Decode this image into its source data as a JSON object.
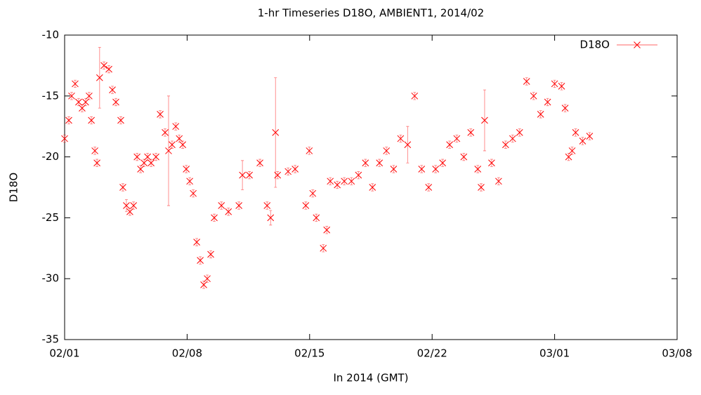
{
  "chart_data": {
    "type": "scatter",
    "title": "1-hr Timeseries D18O, AMBIENT1, 2014/02",
    "xlabel": "In 2014 (GMT)",
    "ylabel": "D18O",
    "legend": "top-right",
    "series": [
      {
        "name": "D18O",
        "color": "#ff0000",
        "x": [
          0,
          0.24,
          0.4,
          0.6,
          0.8,
          1.0,
          1.2,
          1.4,
          1.53,
          1.73,
          1.85,
          2.0,
          2.25,
          2.53,
          2.73,
          2.93,
          3.21,
          3.33,
          3.53,
          3.73,
          3.94,
          4.14,
          4.34,
          4.54,
          4.74,
          4.94,
          5.22,
          5.46,
          5.74,
          5.94,
          6.14,
          6.35,
          6.55,
          6.75,
          6.95,
          7.15,
          7.35,
          7.55,
          7.75,
          7.95,
          8.15,
          8.35,
          8.55,
          8.96,
          9.36,
          9.96,
          10.16,
          10.56,
          11.16,
          11.57,
          11.77,
          12.05,
          12.17,
          12.77,
          13.17,
          13.78,
          13.98,
          14.18,
          14.38,
          14.78,
          14.98,
          15.18,
          15.58,
          15.98,
          16.39,
          16.79,
          17.19,
          17.59,
          17.99,
          18.39,
          18.8,
          19.2,
          19.6,
          20.0,
          20.4,
          20.8,
          21.2,
          21.6,
          22.0,
          22.41,
          22.81,
          23.21,
          23.61,
          23.8,
          24.0,
          24.4,
          24.8,
          25.2,
          25.6,
          26.0,
          26.4,
          26.8,
          27.2,
          27.6,
          28.0,
          28.4,
          28.6,
          28.8,
          29.0,
          29.2,
          29.6,
          30.0
        ],
        "values": [
          -18.5,
          -17,
          -15,
          -14,
          -15.5,
          -16,
          -15.5,
          -15,
          -17,
          -19.5,
          -20.5,
          -13.5,
          -12.5,
          -12.8,
          -14.5,
          -15.5,
          -17,
          -22.5,
          -24,
          -24.5,
          -24,
          -20,
          -21,
          -20.5,
          -20,
          -20.5,
          -20,
          -16.5,
          -18,
          -19.5,
          -19,
          -17.5,
          -18.5,
          -19,
          -21,
          -22,
          -23,
          -27,
          -28.5,
          -30.5,
          -30,
          -28,
          -25,
          -24,
          -24.5,
          -24,
          -21.5,
          -21.5,
          -20.5,
          -24,
          -25,
          -18,
          -21.5,
          -21.2,
          -21,
          -24,
          -19.5,
          -23,
          -25,
          -27.5,
          -26,
          -22,
          -22.3,
          -22,
          -22,
          -21.5,
          -20.5,
          -22.5,
          -20.5,
          -19.5,
          -21,
          -18.5,
          -19,
          -15,
          -21,
          -22.5,
          -21,
          -20.5,
          -19,
          -18.5,
          -20,
          -18,
          -21,
          -22.5,
          -17,
          -20.5,
          -22,
          -19,
          -18.5,
          -18,
          -13.8,
          -15,
          -16.5,
          -15.5,
          -14,
          -14.2,
          -16,
          -20,
          -19.5,
          -18,
          -18.7,
          -18.3
        ],
        "errors": [
          0.3,
          0.3,
          0.3,
          0.3,
          0.3,
          0.3,
          0.3,
          0.3,
          0.3,
          0.3,
          0.3,
          2.5,
          0.3,
          0.3,
          0.3,
          0.3,
          0.3,
          0.3,
          0.5,
          0.3,
          0.3,
          0.3,
          0.3,
          0.3,
          0.3,
          0.3,
          0.3,
          0.3,
          0.3,
          4.5,
          0.3,
          0.3,
          0.3,
          0.3,
          0.3,
          0.3,
          0.3,
          0.3,
          0.3,
          0.3,
          0.3,
          0.3,
          0.3,
          0.3,
          0.3,
          0.3,
          1.2,
          0.3,
          0.3,
          0.3,
          0.6,
          4.5,
          0.3,
          0.3,
          0.3,
          0.3,
          0.3,
          0.3,
          0.3,
          0.3,
          0.3,
          0.3,
          0.3,
          0.3,
          0.3,
          0.3,
          0.3,
          0.3,
          0.3,
          0.3,
          0.3,
          0.3,
          1.5,
          0.3,
          0.3,
          0.3,
          0.3,
          0.3,
          0.3,
          0.3,
          0.3,
          0.3,
          0.3,
          0.3,
          2.5,
          0.3,
          0.3,
          0.3,
          0.3,
          0.3,
          0.3,
          0.3,
          0.3,
          0.3,
          0.3,
          0.3,
          0.3,
          0.3,
          0.3,
          0.3,
          0.3,
          0.3
        ]
      }
    ],
    "xlim": [
      0,
      35
    ],
    "xticks": [
      {
        "value": 0,
        "label": "02/01"
      },
      {
        "value": 7,
        "label": "02/08"
      },
      {
        "value": 14,
        "label": "02/15"
      },
      {
        "value": 21,
        "label": "02/22"
      },
      {
        "value": 28,
        "label": "03/01"
      },
      {
        "value": 35,
        "label": "03/08"
      }
    ],
    "ylim": [
      -35,
      -10
    ],
    "yticks": [
      -35,
      -30,
      -25,
      -20,
      -15,
      -10
    ],
    "grid": false
  }
}
